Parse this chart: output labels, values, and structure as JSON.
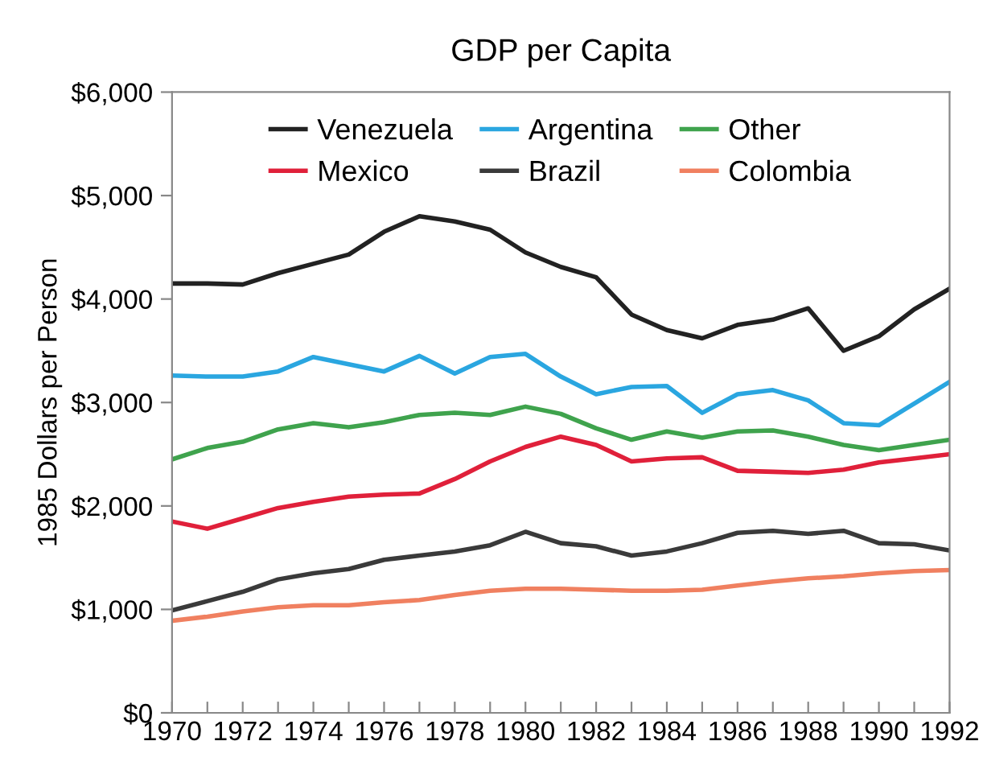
{
  "chart_data": {
    "type": "line",
    "title": "GDP per Capita",
    "ylabel": "1985 Dollars per Person",
    "x": [
      1970,
      1971,
      1972,
      1973,
      1974,
      1975,
      1976,
      1977,
      1978,
      1979,
      1980,
      1981,
      1982,
      1983,
      1984,
      1985,
      1986,
      1987,
      1988,
      1989,
      1990,
      1991,
      1992
    ],
    "series": [
      {
        "name": "Venezuela",
        "color": "#222222",
        "values": [
          4150,
          4150,
          4140,
          4250,
          4340,
          4430,
          4650,
          4800,
          4750,
          4670,
          4450,
          4310,
          4210,
          3850,
          3700,
          3620,
          3750,
          3800,
          3910,
          3500,
          3640,
          3900,
          4100
        ]
      },
      {
        "name": "Argentina",
        "color": "#2aa6e0",
        "values": [
          3260,
          3250,
          3250,
          3300,
          3440,
          3370,
          3300,
          3450,
          3280,
          3440,
          3470,
          3250,
          3080,
          3150,
          3160,
          2900,
          3080,
          3120,
          3020,
          2800,
          2780,
          2990,
          3200
        ]
      },
      {
        "name": "Other",
        "color": "#3fa34d",
        "values": [
          2450,
          2560,
          2620,
          2740,
          2800,
          2760,
          2810,
          2880,
          2900,
          2880,
          2960,
          2890,
          2750,
          2640,
          2720,
          2660,
          2720,
          2730,
          2670,
          2590,
          2540,
          2590,
          2640
        ]
      },
      {
        "name": "Mexico",
        "color": "#e0203a",
        "values": [
          1850,
          1780,
          1880,
          1980,
          2040,
          2090,
          2110,
          2120,
          2260,
          2430,
          2570,
          2670,
          2590,
          2430,
          2460,
          2470,
          2340,
          2330,
          2320,
          2350,
          2420,
          2460,
          2500
        ]
      },
      {
        "name": "Brazil",
        "color": "#3a3a3a",
        "values": [
          990,
          1080,
          1170,
          1290,
          1350,
          1390,
          1480,
          1520,
          1560,
          1620,
          1750,
          1640,
          1610,
          1520,
          1560,
          1640,
          1740,
          1760,
          1730,
          1760,
          1640,
          1630,
          1570
        ]
      },
      {
        "name": "Colombia",
        "color": "#f08060",
        "values": [
          890,
          930,
          980,
          1020,
          1040,
          1040,
          1070,
          1090,
          1140,
          1180,
          1200,
          1200,
          1190,
          1180,
          1180,
          1190,
          1230,
          1270,
          1300,
          1320,
          1350,
          1370,
          1380
        ]
      }
    ],
    "xlim": [
      1970,
      1992
    ],
    "xticks": [
      1970,
      {
        "value": 1971,
        "label": null
      },
      1972,
      {
        "value": 1973,
        "label": null
      },
      1974,
      {
        "value": 1975,
        "label": null
      },
      1976,
      {
        "value": 1977,
        "label": null
      },
      1978,
      {
        "value": 1979,
        "label": null
      },
      1980,
      {
        "value": 1981,
        "label": null
      },
      1982,
      {
        "value": 1983,
        "label": null
      },
      1984,
      {
        "value": 1985,
        "label": null
      },
      1986,
      {
        "value": 1987,
        "label": null
      },
      1988,
      {
        "value": 1989,
        "label": null
      },
      1990,
      {
        "value": 1991,
        "label": null
      },
      1992
    ],
    "ylim": [
      0,
      6000
    ],
    "yticks": [
      {
        "value": 0,
        "label": "$0"
      },
      {
        "value": 1000,
        "label": "$1,000"
      },
      {
        "value": 2000,
        "label": "$2,000"
      },
      {
        "value": 3000,
        "label": "$3,000"
      },
      {
        "value": 4000,
        "label": "$4,000"
      },
      {
        "value": 5000,
        "label": "$5,000"
      },
      {
        "value": 6000,
        "label": "$6,000"
      }
    ],
    "grid": false,
    "legend": "top",
    "marker": "none",
    "line_style": "solid"
  }
}
